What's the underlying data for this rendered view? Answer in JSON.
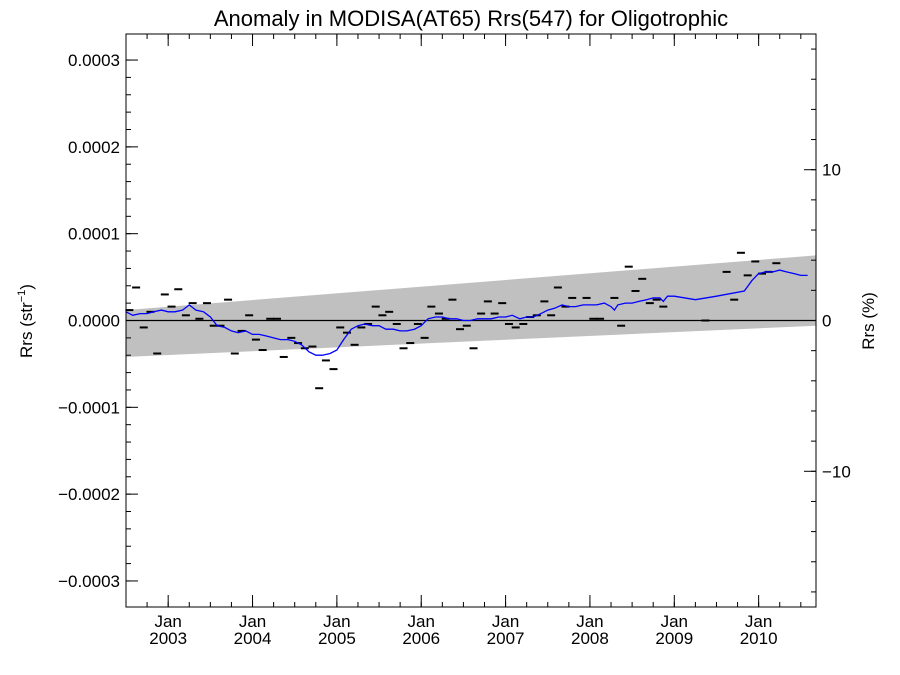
{
  "chart_data": {
    "type": "line",
    "title": "Anomaly in MODISA(AT65) Rrs(547) for Oligotrophic",
    "ylabel_left_base": "Rrs (str",
    "ylabel_left_sup": "−1",
    "ylabel_left_close": ")",
    "ylabel_right": "Rrs (%)",
    "xlim": [
      2002.5,
      2010.68
    ],
    "ylim": [
      -0.00033,
      0.00033
    ],
    "ylim_right_percent": [
      -19.0,
      19.0
    ],
    "left_ticks": [
      {
        "value": 0.0003,
        "label": "0.0003"
      },
      {
        "value": 0.0002,
        "label": "0.0002"
      },
      {
        "value": 0.0001,
        "label": "0.0001"
      },
      {
        "value": 0.0,
        "label": "0.0000"
      },
      {
        "value": -0.0001,
        "label": "−0.0001"
      },
      {
        "value": -0.0002,
        "label": "−0.0002"
      },
      {
        "value": -0.0003,
        "label": "−0.0003"
      }
    ],
    "right_ticks": [
      {
        "value": 10,
        "label": "10"
      },
      {
        "value": 0,
        "label": "0"
      },
      {
        "value": -10,
        "label": "−10"
      }
    ],
    "x_ticks": [
      {
        "value": 2003.0,
        "month": "Jan",
        "year": "2003"
      },
      {
        "value": 2004.0,
        "month": "Jan",
        "year": "2004"
      },
      {
        "value": 2005.0,
        "month": "Jan",
        "year": "2005"
      },
      {
        "value": 2006.0,
        "month": "Jan",
        "year": "2006"
      },
      {
        "value": 2007.0,
        "month": "Jan",
        "year": "2007"
      },
      {
        "value": 2008.0,
        "month": "Jan",
        "year": "2008"
      },
      {
        "value": 2009.0,
        "month": "Jan",
        "year": "2009"
      },
      {
        "value": 2010.0,
        "month": "Jan",
        "year": "2010"
      }
    ],
    "uncertainty_band": {
      "color": "#c0c0c0",
      "upper": [
        [
          2002.5,
          1.2e-05
        ],
        [
          2010.68,
          7.5e-05
        ]
      ],
      "lower": [
        [
          2002.5,
          -4.2e-05
        ],
        [
          2010.68,
          -6e-06
        ]
      ]
    },
    "zero_line_color": "#000000",
    "monthly_points": {
      "color": "#000000",
      "points": [
        [
          2002.54,
          1.2e-05
        ],
        [
          2002.62,
          3.8e-05
        ],
        [
          2002.71,
          -8e-06
        ],
        [
          2002.79,
          1e-05
        ],
        [
          2002.87,
          -3.8e-05
        ],
        [
          2002.96,
          3e-05
        ],
        [
          2003.04,
          1.6e-05
        ],
        [
          2003.12,
          3.6e-05
        ],
        [
          2003.21,
          6e-06
        ],
        [
          2003.29,
          2e-05
        ],
        [
          2003.37,
          2e-06
        ],
        [
          2003.46,
          2e-05
        ],
        [
          2003.54,
          -6e-06
        ],
        [
          2003.62,
          -6e-06
        ],
        [
          2003.71,
          2.4e-05
        ],
        [
          2003.79,
          -3.8e-05
        ],
        [
          2003.87,
          -1.2e-05
        ],
        [
          2003.96,
          6e-06
        ],
        [
          2004.04,
          -2.2e-05
        ],
        [
          2004.12,
          -3.4e-05
        ],
        [
          2004.21,
          2e-06
        ],
        [
          2004.29,
          2e-06
        ],
        [
          2004.37,
          -4.2e-05
        ],
        [
          2004.46,
          -2e-05
        ],
        [
          2004.54,
          -2.6e-05
        ],
        [
          2004.62,
          -3.2e-05
        ],
        [
          2004.71,
          -3e-05
        ],
        [
          2004.79,
          -7.8e-05
        ],
        [
          2004.87,
          -4.6e-05
        ],
        [
          2004.96,
          -5.6e-05
        ],
        [
          2005.04,
          -8e-06
        ],
        [
          2005.12,
          -1.4e-05
        ],
        [
          2005.21,
          -2.8e-05
        ],
        [
          2005.29,
          -8e-06
        ],
        [
          2005.37,
          -4e-06
        ],
        [
          2005.46,
          1.6e-05
        ],
        [
          2005.54,
          6e-06
        ],
        [
          2005.62,
          1e-05
        ],
        [
          2005.71,
          -4e-06
        ],
        [
          2005.79,
          -3.2e-05
        ],
        [
          2005.87,
          -2.6e-05
        ],
        [
          2005.96,
          -4e-06
        ],
        [
          2006.04,
          -2e-05
        ],
        [
          2006.12,
          1.6e-05
        ],
        [
          2006.21,
          8e-06
        ],
        [
          2006.29,
          2e-06
        ],
        [
          2006.37,
          2.4e-05
        ],
        [
          2006.46,
          -1e-05
        ],
        [
          2006.54,
          -6e-06
        ],
        [
          2006.62,
          -3.2e-05
        ],
        [
          2006.71,
          8e-06
        ],
        [
          2006.79,
          2.2e-05
        ],
        [
          2006.87,
          8e-06
        ],
        [
          2006.96,
          2e-05
        ],
        [
          2007.04,
          -4e-06
        ],
        [
          2007.12,
          -8e-06
        ],
        [
          2007.21,
          -4e-06
        ],
        [
          2007.29,
          4e-06
        ],
        [
          2007.37,
          6e-06
        ],
        [
          2007.46,
          2.2e-05
        ],
        [
          2007.54,
          6e-06
        ],
        [
          2007.62,
          3.8e-05
        ],
        [
          2007.71,
          1.6e-05
        ],
        [
          2007.79,
          2.6e-05
        ],
        [
          2007.96,
          2.6e-05
        ],
        [
          2008.04,
          2e-06
        ],
        [
          2008.12,
          2e-06
        ],
        [
          2008.29,
          2.6e-05
        ],
        [
          2008.37,
          -6e-06
        ],
        [
          2008.46,
          6.2e-05
        ],
        [
          2008.54,
          3.4e-05
        ],
        [
          2008.62,
          4.8e-05
        ],
        [
          2008.71,
          2e-05
        ],
        [
          2008.79,
          2.4e-05
        ],
        [
          2008.87,
          1.6e-05
        ],
        [
          2009.37,
          0.0
        ],
        [
          2009.62,
          5.6e-05
        ],
        [
          2009.71,
          2.4e-05
        ],
        [
          2009.79,
          7.8e-05
        ],
        [
          2009.87,
          5.2e-05
        ],
        [
          2009.96,
          6.8e-05
        ],
        [
          2010.04,
          5.4e-05
        ],
        [
          2010.12,
          5.6e-05
        ],
        [
          2010.21,
          6.6e-05
        ]
      ]
    },
    "running_mean": {
      "color": "#0000ff",
      "points": [
        [
          2002.5,
          1e-05
        ],
        [
          2002.58,
          6e-06
        ],
        [
          2002.67,
          8e-06
        ],
        [
          2002.75,
          8e-06
        ],
        [
          2002.83,
          1e-05
        ],
        [
          2002.92,
          1.2e-05
        ],
        [
          2003.0,
          1e-05
        ],
        [
          2003.08,
          1e-05
        ],
        [
          2003.17,
          1.2e-05
        ],
        [
          2003.25,
          1.8e-05
        ],
        [
          2003.33,
          1.2e-05
        ],
        [
          2003.42,
          1e-05
        ],
        [
          2003.5,
          4e-06
        ],
        [
          2003.58,
          -6e-06
        ],
        [
          2003.67,
          -8e-06
        ],
        [
          2003.75,
          -1.2e-05
        ],
        [
          2003.83,
          -1.4e-05
        ],
        [
          2003.92,
          -1.2e-05
        ],
        [
          2004.0,
          -1.6e-05
        ],
        [
          2004.08,
          -1.6e-05
        ],
        [
          2004.17,
          -1.8e-05
        ],
        [
          2004.25,
          -2e-05
        ],
        [
          2004.33,
          -2.2e-05
        ],
        [
          2004.42,
          -2.2e-05
        ],
        [
          2004.5,
          -2.4e-05
        ],
        [
          2004.58,
          -2.8e-05
        ],
        [
          2004.67,
          -3.6e-05
        ],
        [
          2004.75,
          -4e-05
        ],
        [
          2004.83,
          -4e-05
        ],
        [
          2004.92,
          -3.8e-05
        ],
        [
          2005.0,
          -3.4e-05
        ],
        [
          2005.08,
          -2.2e-05
        ],
        [
          2005.17,
          -1e-05
        ],
        [
          2005.25,
          -6e-06
        ],
        [
          2005.33,
          -4e-06
        ],
        [
          2005.42,
          -6e-06
        ],
        [
          2005.5,
          -6e-06
        ],
        [
          2005.58,
          -1e-05
        ],
        [
          2005.67,
          -1e-05
        ],
        [
          2005.75,
          -1.2e-05
        ],
        [
          2005.83,
          -1.2e-05
        ],
        [
          2005.92,
          -1e-05
        ],
        [
          2006.0,
          -6e-06
        ],
        [
          2006.08,
          2e-06
        ],
        [
          2006.17,
          4e-06
        ],
        [
          2006.25,
          4e-06
        ],
        [
          2006.33,
          2e-06
        ],
        [
          2006.42,
          2e-06
        ],
        [
          2006.5,
          0.0
        ],
        [
          2006.58,
          0.0
        ],
        [
          2006.67,
          2e-06
        ],
        [
          2006.75,
          2e-06
        ],
        [
          2006.83,
          2e-06
        ],
        [
          2006.92,
          4e-06
        ],
        [
          2007.0,
          4e-06
        ],
        [
          2007.08,
          6e-06
        ],
        [
          2007.17,
          2e-06
        ],
        [
          2007.25,
          4e-06
        ],
        [
          2007.33,
          4e-06
        ],
        [
          2007.42,
          8e-06
        ],
        [
          2007.5,
          1.2e-05
        ],
        [
          2007.58,
          1.4e-05
        ],
        [
          2007.67,
          1.8e-05
        ],
        [
          2007.75,
          1.6e-05
        ],
        [
          2007.83,
          1.6e-05
        ],
        [
          2007.92,
          1.8e-05
        ],
        [
          2008.0,
          1.8e-05
        ],
        [
          2008.08,
          1.8e-05
        ],
        [
          2008.17,
          2e-05
        ],
        [
          2008.25,
          1.6e-05
        ],
        [
          2008.29,
          1.2e-05
        ],
        [
          2008.33,
          1.8e-05
        ],
        [
          2008.42,
          2e-05
        ],
        [
          2008.5,
          2e-05
        ],
        [
          2008.58,
          2.2e-05
        ],
        [
          2008.67,
          2.4e-05
        ],
        [
          2008.75,
          2.6e-05
        ],
        [
          2008.83,
          2.6e-05
        ],
        [
          2008.87,
          2.2e-05
        ],
        [
          2008.92,
          2.8e-05
        ],
        [
          2009.0,
          2.8e-05
        ],
        [
          2009.25,
          2.4e-05
        ],
        [
          2009.5,
          2.8e-05
        ],
        [
          2009.83,
          3.4e-05
        ],
        [
          2009.92,
          4.6e-05
        ],
        [
          2010.0,
          5.4e-05
        ],
        [
          2010.08,
          5.6e-05
        ],
        [
          2010.17,
          5.6e-05
        ],
        [
          2010.25,
          5.8e-05
        ],
        [
          2010.33,
          5.6e-05
        ],
        [
          2010.42,
          5.4e-05
        ],
        [
          2010.5,
          5.2e-05
        ],
        [
          2010.58,
          5.2e-05
        ]
      ]
    },
    "grid": false
  }
}
